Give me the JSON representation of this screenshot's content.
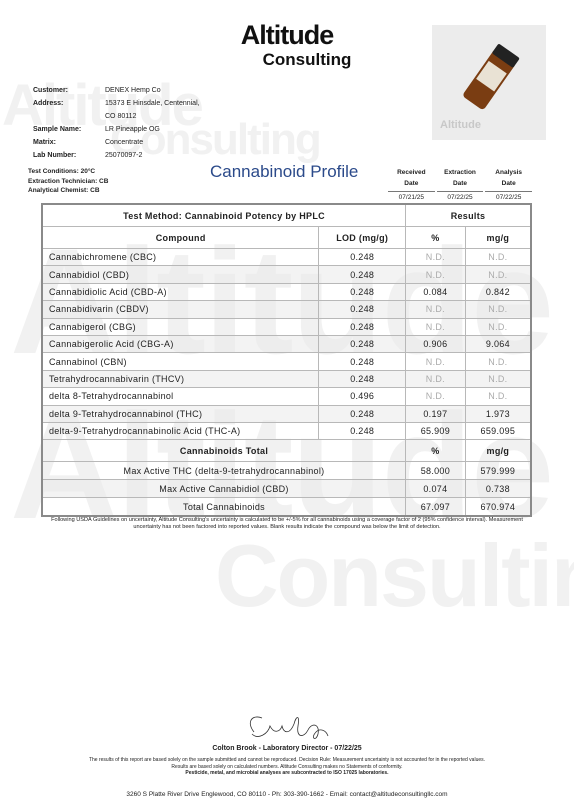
{
  "header": {
    "logo_top": "Altitude",
    "logo_bottom": "Consulting"
  },
  "watermark": {
    "top": "Altitude",
    "bottom": "Consulting"
  },
  "sample": [
    {
      "label": "Customer:",
      "value": [
        "DENEX Hemp Co"
      ]
    },
    {
      "label": "Address:",
      "value": [
        "15373 E Hinsdale, Centennial,",
        "CO 80112"
      ]
    },
    {
      "label": "Sample Name:",
      "value": [
        "LR Pineapple OG"
      ]
    },
    {
      "label": "Matrix:",
      "value": [
        "Concentrate"
      ]
    },
    {
      "label": "Lab Number:",
      "value": [
        "25070097-2"
      ]
    }
  ],
  "conditions": [
    "Test Conditions: 20°C",
    "Extraction Technician: CB",
    "Analytical Chemist: CB"
  ],
  "title": "Cannabinoid Profile",
  "dates": {
    "headers": [
      [
        "Received",
        "Date"
      ],
      [
        "Extraction",
        "Date"
      ],
      [
        "Analysis",
        "Date"
      ]
    ],
    "values": [
      "07/21/25",
      "07/22/25",
      "07/22/25"
    ]
  },
  "table": {
    "method": "Test Method: Cannabinoid Potency by HPLC",
    "results": "Results",
    "columns": [
      "Compound",
      "LOD (mg/g)",
      "%",
      "mg/g"
    ],
    "rows": [
      [
        "Cannabichromene (CBC)",
        "0.248",
        "N.D.",
        "N.D."
      ],
      [
        "Cannabidiol (CBD)",
        "0.248",
        "N.D.",
        "N.D."
      ],
      [
        "Cannabidiolic Acid (CBD-A)",
        "0.248",
        "0.084",
        "0.842"
      ],
      [
        "Cannabidivarin (CBDV)",
        "0.248",
        "N.D.",
        "N.D."
      ],
      [
        "Cannabigerol (CBG)",
        "0.248",
        "N.D.",
        "N.D."
      ],
      [
        "Cannabigerolic Acid (CBG-A)",
        "0.248",
        "0.906",
        "9.064"
      ],
      [
        "Cannabinol (CBN)",
        "0.248",
        "N.D.",
        "N.D."
      ],
      [
        "Tetrahydrocannabivarin (THCV)",
        "0.248",
        "N.D.",
        "N.D."
      ],
      [
        "delta 8-Tetrahydrocannabinol",
        "0.496",
        "N.D.",
        "N.D."
      ],
      [
        "delta 9-Tetrahydrocannabinol (THC)",
        "0.248",
        "0.197",
        "1.973"
      ],
      [
        "delta-9-Tetrahydrocannabinolic Acid (THC-A)",
        "0.248",
        "65.909",
        "659.095"
      ]
    ],
    "totals_header": [
      "Cannabinoids Total",
      "%",
      "mg/g"
    ],
    "totals": [
      [
        "Max Active THC (delta-9-tetrahydrocannabinol)",
        "58.000",
        "579.999"
      ],
      [
        "Max Active Cannabidiol (CBD)",
        "0.074",
        "0.738"
      ],
      [
        "Total Cannabinoids",
        "67.097",
        "670.974"
      ]
    ]
  },
  "note": "Following USDA Guidelines on uncertainty, Altitude Consulting's uncertainty is calculated to be +/-5% for all cannabinoids using a coverage factor of 2 (95% confidence interval). Measurement uncertainty has not been factored into reported values. Blank results indicate the compound was below the limit of detection.",
  "signature": "Colton Brook - Laboratory Director - 07/22/25",
  "disclaimer": [
    "The results of this report are based solely on the sample submitted and cannot be reproduced. Decision Rule: Measurement uncertainty is not accounted for in the reported values.",
    "Results are based solely on calculated numbers. Altitude Consulting makes no Statements of conformity.",
    "Pesticide, metal, and microbial analyses are subcontracted to ISO 17025 laboratories."
  ],
  "footer": "3260 S Platte River Drive Englewood, CO 80110 - Ph: 303-390-1662 - Email: contact@altitudeconsultingllc.com"
}
